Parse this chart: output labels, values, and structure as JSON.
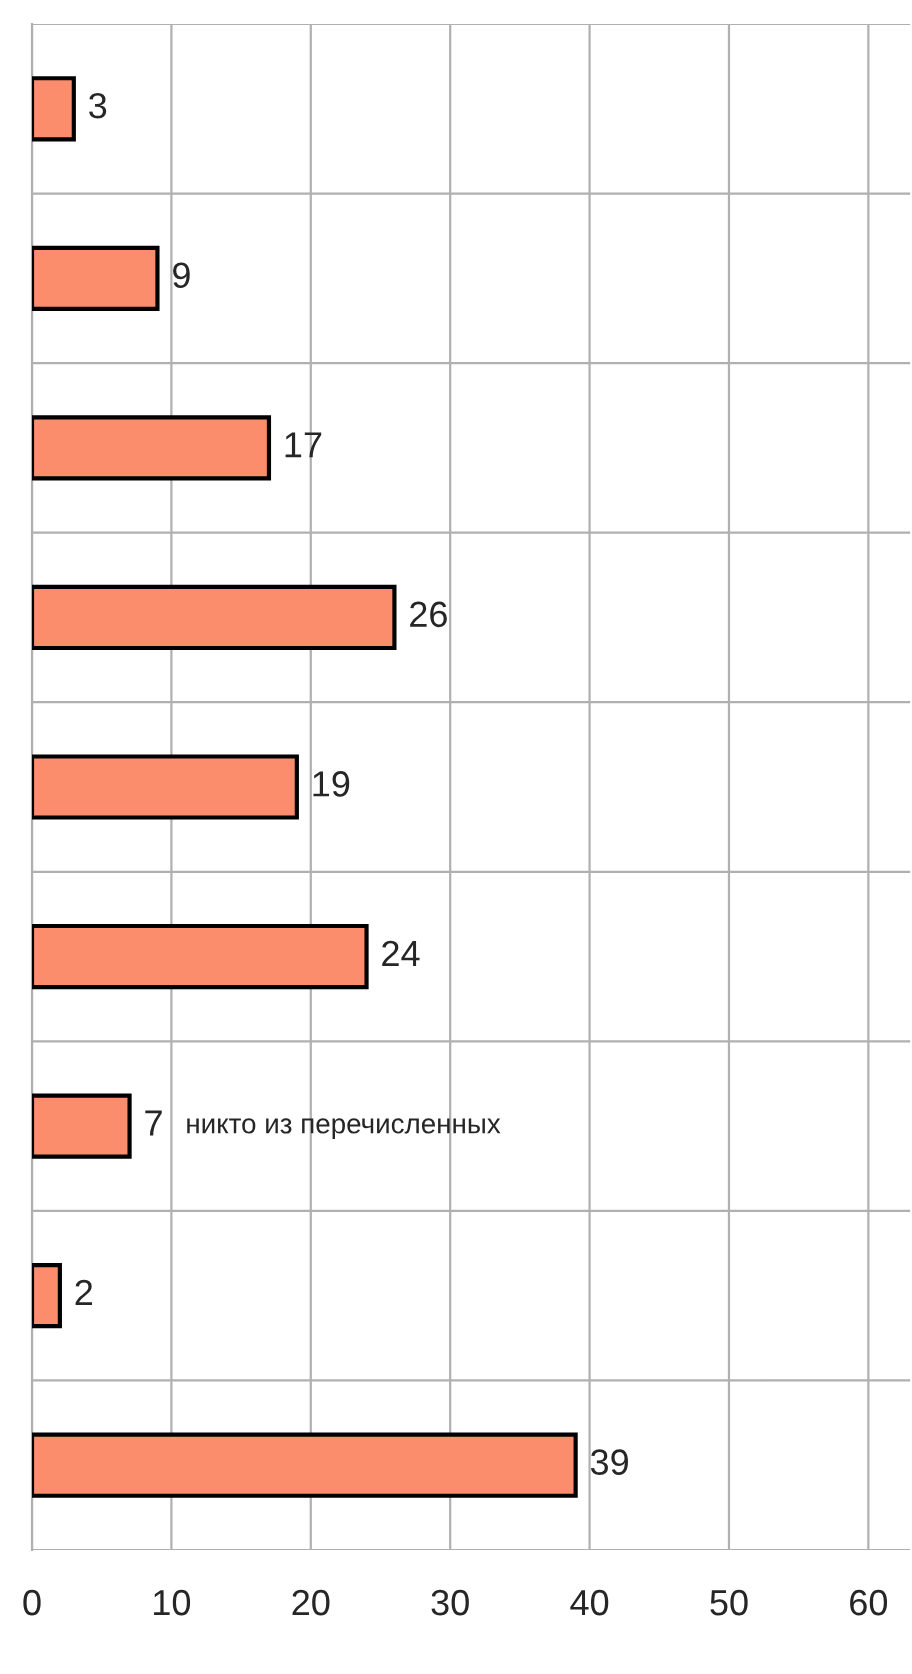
{
  "chart_data": {
    "type": "bar",
    "orientation": "horizontal",
    "categories": [
      null,
      null,
      null,
      null,
      null,
      null,
      null,
      null,
      null
    ],
    "values": [
      3,
      9,
      17,
      26,
      19,
      24,
      7,
      2,
      39
    ],
    "color": "#fb8c6c",
    "data_labels": true,
    "xlim": [
      0,
      63
    ],
    "xticks": [
      0,
      10,
      20,
      30,
      40,
      50,
      60
    ],
    "grid": true,
    "tick_labels": "x",
    "annotations": [
      "никто из перечисленных"
    ]
  }
}
